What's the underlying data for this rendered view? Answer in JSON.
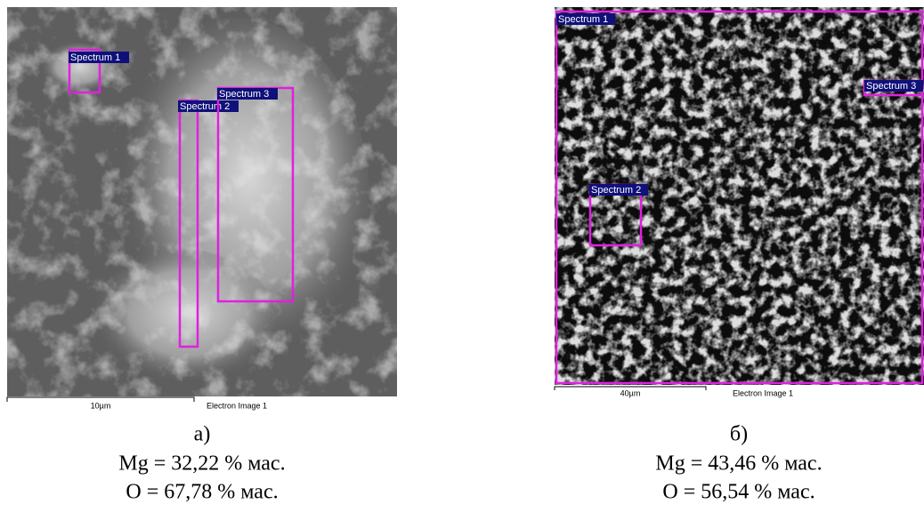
{
  "panels": [
    {
      "image": {
        "spectra": [
          "Spectrum 1",
          "Spectrum 2",
          "Spectrum 3"
        ],
        "scale_bar": "10µm",
        "image_title": "Electron Image 1"
      },
      "label": "а)",
      "lines": [
        "Mg = 32,22 % мас.",
        "O = 67,78 % мас."
      ]
    },
    {
      "image": {
        "spectra": [
          "Spectrum 1",
          "Spectrum 2",
          "Spectrum 3"
        ],
        "scale_bar": "40µm",
        "image_title": "Electron Image 1"
      },
      "label": "б)",
      "lines": [
        "Mg = 43,46 % мас.",
        "O = 56,54 % мас."
      ]
    }
  ]
}
